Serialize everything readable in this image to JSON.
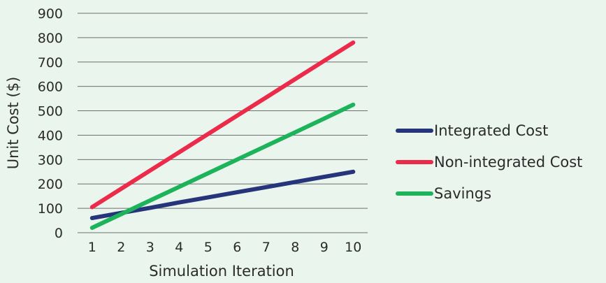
{
  "chart_data": {
    "type": "line",
    "title": "",
    "xlabel": "Simulation Iteration",
    "ylabel": "Unit Cost ($)",
    "x": [
      1,
      2,
      3,
      4,
      5,
      6,
      7,
      8,
      9,
      10
    ],
    "xlim": [
      0.5,
      10.5
    ],
    "ylim": [
      0,
      900
    ],
    "yticks": [
      0,
      100,
      200,
      300,
      400,
      500,
      600,
      700,
      800,
      900
    ],
    "grid": true,
    "legend_position": "right",
    "series": [
      {
        "name": "Integrated Cost",
        "color": "#26357a",
        "values": [
          60,
          81,
          102,
          124,
          145,
          166,
          187,
          208,
          229,
          250
        ]
      },
      {
        "name": "Non-integrated Cost",
        "color": "#ec2b4b",
        "values": [
          105,
          180,
          255,
          330,
          405,
          480,
          555,
          630,
          705,
          780
        ]
      },
      {
        "name": "Savings",
        "color": "#1db35b",
        "values": [
          20,
          76,
          132,
          188,
          244,
          300,
          356,
          412,
          468,
          525
        ]
      }
    ]
  }
}
